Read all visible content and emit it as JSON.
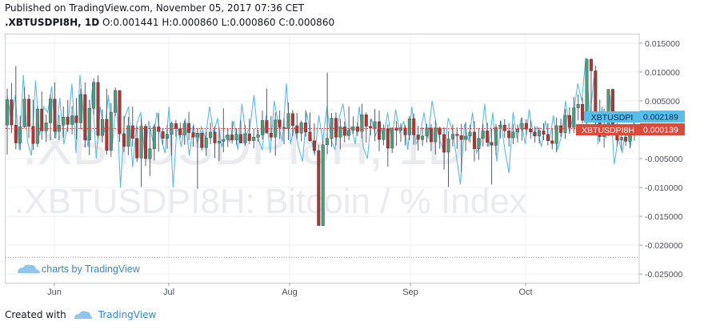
{
  "header": {
    "published": "Published on TradingView.com, November 05, 2017 07:36 CET",
    "symbol": ".XBTUSDPI8H, 1D",
    "ohlc_open_label": "O:",
    "ohlc_open": "0.001441",
    "ohlc_high_label": "H:",
    "ohlc_high": "0.000860",
    "ohlc_low_label": "L:",
    "ohlc_low": "0.000860",
    "ohlc_close_label": "C:",
    "ohlc_close": "0.000860"
  },
  "watermark": {
    "symbol": ".XBTUSDPI8H, 1D",
    "description": ".XBTUSDPI8H: Bitcoin / % Index"
  },
  "charts_by": "charts by TradingView",
  "footer": {
    "created_with": "Created with",
    "brand": "TradingView"
  },
  "colors": {
    "up": "#4c9e7a",
    "down": "#b6322f",
    "line_series": "#59bde8",
    "price_line": "#e03b3b",
    "grid": "#eef0f3",
    "axis_text": "#4a4f5a",
    "brand": "#2f8ad7"
  },
  "chart_data": {
    "type": "candlestick",
    "x_tick_labels": [
      "Jun",
      "Jul",
      "Aug",
      "Sep",
      "Oct"
    ],
    "y_tick_labels": [
      "0.015000",
      "0.010000",
      "0.005000",
      "0.000000",
      "-0.005000",
      "-0.010000",
      "-0.015000",
      "-0.020000",
      "-0.025000"
    ],
    "ylim": [
      -0.0265,
      0.0165
    ],
    "grid": true,
    "series_labels": [
      {
        "name": "XBTUSDPI",
        "value": "0.002189",
        "color": "#59bde8"
      },
      {
        "name": "XBTUSDPI8H",
        "value": "0.000139",
        "color": "#d94b3b"
      }
    ],
    "price_line_value": 0.0002,
    "baseline_value": -0.0221,
    "candles_ohlc": [
      [
        0.0008,
        0.0071,
        -0.0043,
        0.0052
      ],
      [
        0.0052,
        0.0081,
        -0.0006,
        0.0008
      ],
      [
        0.0008,
        0.011,
        -0.0034,
        -0.0023
      ],
      [
        -0.0023,
        0.0024,
        -0.0035,
        0.0005
      ],
      [
        0.0005,
        0.0074,
        0.0003,
        0.0053
      ],
      [
        0.0053,
        0.0061,
        -0.0014,
        0.0006
      ],
      [
        0.0006,
        0.0052,
        -0.0035,
        -0.0024
      ],
      [
        -0.0024,
        0.0041,
        -0.003,
        0.0036
      ],
      [
        0.0036,
        0.0066,
        -0.0017,
        -0.0002
      ],
      [
        -0.0002,
        0.0026,
        -0.0021,
        0.0012
      ],
      [
        0.0012,
        0.0061,
        -0.0018,
        0.0053
      ],
      [
        0.0053,
        0.0082,
        -0.0015,
        -0.0003
      ],
      [
        -0.0003,
        0.0025,
        -0.0018,
        0.0008
      ],
      [
        0.0008,
        0.004,
        -0.0014,
        0.0022
      ],
      [
        0.0022,
        0.0051,
        -0.0004,
        0.0009
      ],
      [
        0.0009,
        0.0041,
        -0.0008,
        0.0024
      ],
      [
        0.0024,
        0.0055,
        -0.0017,
        0.0012
      ],
      [
        0.0012,
        0.0071,
        0.0001,
        0.0061
      ],
      [
        0.0061,
        0.0082,
        -0.0031,
        -0.0018
      ],
      [
        -0.0018,
        0.0052,
        -0.0044,
        0.0037
      ],
      [
        0.0037,
        0.0089,
        0.0026,
        0.0082
      ],
      [
        0.0082,
        0.0094,
        -0.0015,
        -0.001
      ],
      [
        -0.001,
        0.0035,
        -0.0022,
        0.0018
      ],
      [
        0.0018,
        0.0071,
        -0.0043,
        -0.0036
      ],
      [
        -0.0036,
        0.0046,
        -0.0047,
        0.003
      ],
      [
        0.003,
        0.0073,
        0.0024,
        0.0068
      ],
      [
        0.0068,
        0.0068,
        -0.0021,
        -0.0007
      ],
      [
        -0.0007,
        0.0024,
        -0.0039,
        -0.0029
      ],
      [
        -0.0029,
        0.0022,
        -0.0044,
        0.0007
      ],
      [
        0.0007,
        0.004,
        -0.0029,
        -0.0015
      ],
      [
        -0.0015,
        0.0006,
        -0.0056,
        -0.0049
      ],
      [
        -0.0049,
        0.002,
        -0.0099,
        0.0006
      ],
      [
        0.0006,
        0.001,
        -0.0063,
        -0.005
      ],
      [
        -0.005,
        0.0006,
        -0.008,
        -0.0033
      ],
      [
        -0.0033,
        0.001,
        -0.0053,
        0.0005
      ],
      [
        0.0005,
        0.0029,
        -0.0038,
        -0.0003
      ],
      [
        -0.0003,
        0.0003,
        -0.0026,
        -0.0015
      ],
      [
        -0.0015,
        0.0008,
        -0.0033,
        -0.0008
      ],
      [
        -0.0008,
        0.0014,
        -0.0045,
        0.0011
      ],
      [
        0.0011,
        0.0017,
        -0.0012,
        0.0002
      ],
      [
        0.0002,
        0.0012,
        -0.0014,
        -0.0009
      ],
      [
        -0.0009,
        0.0016,
        -0.0026,
        0.0011
      ],
      [
        0.0011,
        0.0031,
        -0.0018,
        -0.0005
      ],
      [
        -0.0005,
        0.0006,
        -0.0029,
        -0.0013
      ],
      [
        -0.0013,
        0.0002,
        -0.0102,
        -0.0006
      ],
      [
        -0.0006,
        -0.0003,
        -0.0036,
        -0.0031
      ],
      [
        -0.0031,
        -0.0004,
        -0.0045,
        -0.0014
      ],
      [
        -0.0014,
        0.0012,
        -0.0025,
        -0.0004
      ],
      [
        -0.0004,
        0.0006,
        -0.0049,
        -0.0023
      ],
      [
        -0.0023,
        0.0004,
        -0.0054,
        -0.002
      ],
      [
        -0.002,
        0.0037,
        -0.0039,
        -0.0017
      ],
      [
        -0.0017,
        0.0002,
        -0.003,
        -0.0009
      ],
      [
        -0.0009,
        0.0015,
        -0.0024,
        -0.0018
      ],
      [
        -0.0018,
        0.0003,
        -0.0026,
        -0.0008
      ],
      [
        -0.0008,
        0.0016,
        -0.002,
        -0.0023
      ],
      [
        -0.0023,
        0.0008,
        -0.0028,
        -0.0007
      ],
      [
        -0.0007,
        0.0019,
        -0.0025,
        -0.0019
      ],
      [
        -0.0019,
        0.0001,
        -0.0032,
        -0.0013
      ],
      [
        -0.0013,
        0.0,
        -0.0021,
        -0.0009
      ],
      [
        -0.0009,
        0.0033,
        -0.0017,
        0.0016
      ],
      [
        0.0016,
        0.0071,
        -0.0002,
        -0.0006
      ],
      [
        -0.0006,
        0.0024,
        -0.0019,
        -0.0013
      ],
      [
        -0.0013,
        0.003,
        -0.0045,
        0.0017
      ],
      [
        0.0017,
        0.0033,
        -0.0016,
        0.0004
      ],
      [
        0.0004,
        0.002,
        -0.0025,
        0.0002
      ],
      [
        0.0002,
        0.0047,
        -0.0018,
        0.0028
      ],
      [
        0.0028,
        0.0034,
        -0.0011,
        0.0007
      ],
      [
        0.0007,
        0.0029,
        -0.0016,
        -0.0006
      ],
      [
        -0.0006,
        0.0016,
        -0.002,
        0.0012
      ],
      [
        0.0012,
        0.0034,
        -0.0012,
        -0.0004
      ],
      [
        -0.0004,
        0.003,
        -0.0021,
        -0.0019
      ],
      [
        -0.0019,
        0.0011,
        -0.0041,
        -0.0036
      ],
      [
        -0.0036,
        -0.0026,
        -0.0166,
        -0.0166
      ],
      [
        -0.0166,
        -0.0019,
        -0.0166,
        -0.0026
      ],
      [
        -0.0026,
        0.0099,
        -0.0042,
        -0.0015
      ],
      [
        -0.0015,
        0.0029,
        -0.003,
        0.002
      ],
      [
        0.002,
        0.003,
        -0.0027,
        -0.0013
      ],
      [
        -0.0013,
        0.0019,
        -0.0034,
        0.0005
      ],
      [
        0.0005,
        0.0014,
        -0.0022,
        -0.001
      ],
      [
        -0.001,
        0.004,
        -0.0018,
        -0.0001
      ],
      [
        -0.0001,
        0.0023,
        -0.0007,
        0.0005
      ],
      [
        0.0005,
        0.0013,
        -0.0011,
        -0.0003
      ],
      [
        -0.0003,
        0.0045,
        -0.0015,
        0.0026
      ],
      [
        0.0026,
        0.003,
        -0.0022,
        0.0006
      ],
      [
        0.0006,
        0.0018,
        -0.001,
        0.0003
      ],
      [
        0.0003,
        0.0036,
        -0.002,
        0.0014
      ],
      [
        0.0014,
        0.0033,
        -0.0037,
        -0.0017
      ],
      [
        -0.0017,
        0.0009,
        -0.0027,
        0.0002
      ],
      [
        0.0002,
        0.0009,
        -0.0064,
        -0.0032
      ],
      [
        -0.0032,
        0.0001,
        -0.004,
        0.0003
      ],
      [
        0.0003,
        0.0015,
        -0.0028,
        -0.0001
      ],
      [
        -0.0001,
        0.0011,
        -0.0021,
        0.0003
      ],
      [
        0.0003,
        0.0008,
        -0.0027,
        -0.0009
      ],
      [
        -0.0009,
        0.0024,
        -0.0018,
        0.0019
      ],
      [
        0.0019,
        0.0028,
        -0.0026,
        -0.0009
      ],
      [
        -0.0009,
        0.0007,
        -0.0036,
        -0.0017
      ],
      [
        -0.0017,
        0.0004,
        -0.0028,
        -0.0011
      ],
      [
        -0.0011,
        0.001,
        -0.0022,
        0.0003
      ],
      [
        0.0003,
        0.001,
        -0.0037,
        -0.0021
      ],
      [
        -0.0021,
        0.0016,
        -0.0043,
        0.0003
      ],
      [
        0.0003,
        0.0005,
        -0.0033,
        -0.0008
      ],
      [
        -0.0008,
        0.0004,
        -0.0069,
        -0.0039
      ],
      [
        -0.0039,
        -0.0003,
        -0.0099,
        -0.0016
      ],
      [
        -0.0016,
        0.0009,
        -0.0029,
        -0.0008
      ],
      [
        -0.0008,
        0.0004,
        -0.0033,
        -0.001
      ],
      [
        -0.001,
        0.001,
        -0.0074,
        -0.0017
      ],
      [
        -0.0017,
        0.0013,
        -0.0037,
        -0.0011
      ],
      [
        -0.0011,
        0.0008,
        -0.0022,
        -0.0004
      ],
      [
        -0.0004,
        0.0015,
        -0.0055,
        -0.0033
      ],
      [
        -0.0033,
        0.0003,
        -0.0052,
        -0.0015
      ],
      [
        -0.0015,
        0.001,
        -0.0029,
        -0.0002
      ],
      [
        -0.0002,
        0.0012,
        -0.0029,
        -0.0022
      ],
      [
        -0.0022,
        0.0002,
        -0.0095,
        -0.0027
      ],
      [
        -0.0027,
        0.001,
        -0.0044,
        0.0004
      ],
      [
        0.0004,
        0.0016,
        -0.0015,
        0.0008
      ],
      [
        0.0008,
        0.0018,
        -0.0014,
        -0.0002
      ],
      [
        -0.0002,
        0.0011,
        -0.0029,
        -0.0014
      ],
      [
        -0.0014,
        0.001,
        -0.0025,
        -0.0004
      ],
      [
        -0.0004,
        0.0009,
        -0.0022,
        0.0001
      ],
      [
        0.0001,
        0.0021,
        -0.0019,
        0.0011
      ],
      [
        0.0011,
        0.0018,
        -0.0009,
        0.0001
      ],
      [
        0.0001,
        0.0016,
        -0.0015,
        -0.0004
      ],
      [
        -0.0004,
        0.0006,
        -0.0022,
        -0.0011
      ],
      [
        -0.0011,
        0.0004,
        -0.0024,
        -0.0002
      ],
      [
        -0.0002,
        0.0011,
        -0.0018,
        -0.0008
      ],
      [
        -0.0008,
        0.0011,
        -0.0027,
        -0.0019
      ],
      [
        -0.0019,
        0.0003,
        -0.0034,
        -0.0024
      ],
      [
        -0.0024,
        0.0021,
        -0.0039,
        0.0007
      ],
      [
        0.0007,
        0.0019,
        -0.0012,
        -0.0005
      ],
      [
        -0.0005,
        0.0036,
        -0.0016,
        0.0025
      ],
      [
        0.0025,
        0.0039,
        -0.0007,
        0.0004
      ],
      [
        0.0004,
        0.0057,
        -0.0006,
        0.0038
      ],
      [
        0.0038,
        0.0061,
        0.0016,
        0.0044
      ],
      [
        0.0044,
        0.0055,
        0.0011,
        0.0016
      ],
      [
        0.0016,
        0.0123,
        0.0002,
        0.0122
      ],
      [
        0.0122,
        0.0124,
        0.0014,
        0.0102
      ],
      [
        0.0102,
        0.0111,
        0.0003,
        0.0015
      ],
      [
        0.0015,
        0.0052,
        -0.0021,
        -0.0012
      ],
      [
        -0.0012,
        0.0036,
        -0.0031,
        0.0005
      ],
      [
        0.0005,
        0.0054,
        -0.0011,
        0.007
      ],
      [
        0.007,
        0.0071,
        -0.0007,
        -0.0007
      ],
      [
        -0.0007,
        0.0011,
        -0.0029,
        -0.0018
      ],
      [
        -0.0018,
        0.0006,
        -0.0035,
        -0.0013
      ],
      [
        -0.0013,
        0.0006,
        -0.0028,
        -0.002
      ],
      [
        -0.002,
        0.0005,
        -0.0032,
        0.0001
      ],
      [
        0.0001,
        0.0012,
        -0.0019,
        0.0002
      ]
    ],
    "line_values": [
      0.006,
      0.0015,
      0.006,
      -0.0035,
      0.0095,
      -0.002,
      -0.0045,
      0.0085,
      -0.001,
      0.004,
      0.003,
      0.0075,
      -0.0015,
      0.0055,
      -0.0025,
      0.001,
      0.008,
      -0.004,
      0.0095,
      0.0015,
      -0.003,
      0.007,
      -0.005,
      0.004,
      -0.0005,
      0.006,
      -0.0025,
      0.0055,
      -0.01,
      0.002,
      0.004,
      -0.0065,
      0.001,
      0.003,
      -0.0045,
      0.0015,
      -0.002,
      0.003,
      -0.0015,
      -0.004,
      0.004,
      -0.01,
      0.001,
      -0.003,
      0.002,
      -0.0045,
      0.001,
      -0.0025,
      0.0005,
      -0.0015,
      0.004,
      -0.0005,
      0.002,
      -0.003,
      -0.001,
      -0.002,
      0.0015,
      -0.0035,
      0.0045,
      -0.001,
      0.0005,
      0.006,
      -0.0015,
      -0.0035,
      0.0025,
      -0.004,
      0.005,
      0.001,
      -0.002,
      0.008,
      -0.0025,
      0.0005,
      -0.003,
      -0.0055,
      0.003,
      -0.001,
      -0.0045,
      0.0025,
      -0.002,
      0.004,
      -0.0015,
      -0.0035,
      0.002,
      0.0045,
      -0.001,
      0.0005,
      -0.0025,
      0.004,
      -0.003,
      -0.005,
      0.002,
      -0.001,
      0.001,
      -0.0015,
      0.003,
      -0.002,
      0.0035,
      -0.0005,
      0.0015,
      -0.0035,
      0.004,
      -0.0025,
      -0.001,
      0.003,
      -0.0015,
      0.005,
      0.001,
      -0.002,
      -0.004,
      0.002,
      0.0,
      -0.0045,
      -0.0095,
      0.001,
      -0.002,
      0.003,
      -0.004,
      -0.0025,
      0.0045,
      -0.003,
      0.003,
      -0.0055,
      0.0015,
      -0.0035,
      -0.0075,
      0.003,
      -0.0015,
      0.002,
      -0.0025,
      0.0035,
      -0.001,
      0.0005,
      -0.003,
      0.0015,
      -0.002,
      0.0025,
      -0.0035,
      -0.001,
      0.005,
      -0.0005,
      0.003,
      0.008,
      0.005,
      0.0125,
      0.002,
      0.009,
      -0.0025,
      0.004,
      -0.0015,
      0.006,
      -0.006,
      -0.0015,
      -0.004,
      0.001,
      -0.003,
      0.0022
    ]
  }
}
